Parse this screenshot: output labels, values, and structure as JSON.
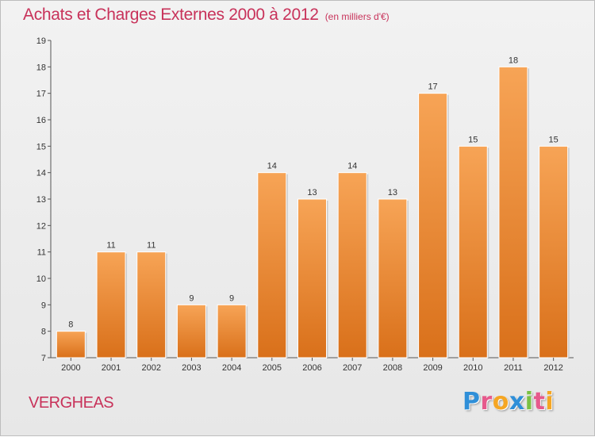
{
  "chart_data": {
    "type": "bar",
    "title": "Achats et Charges Externes 2000 à 2012",
    "subtitle": "(en milliers d'€)",
    "categories": [
      "2000",
      "2001",
      "2002",
      "2003",
      "2004",
      "2005",
      "2006",
      "2007",
      "2008",
      "2009",
      "2010",
      "2011",
      "2012"
    ],
    "values": [
      8,
      11,
      11,
      9,
      9,
      14,
      13,
      14,
      13,
      17,
      15,
      18,
      15
    ],
    "ylim": [
      7,
      19
    ],
    "yticks": [
      7,
      8,
      9,
      10,
      11,
      12,
      13,
      14,
      15,
      16,
      17,
      18,
      19
    ],
    "xlabel": "",
    "ylabel": "",
    "grid": false,
    "bar_color": "#f0923a",
    "label": "VERGHEAS"
  },
  "brand": {
    "letters": [
      {
        "char": "P",
        "color": "#2f8fd8"
      },
      {
        "char": "r",
        "color": "#e65a8c"
      },
      {
        "char": "o",
        "color": "#f5a623"
      },
      {
        "char": "x",
        "color": "#2f8fd8"
      },
      {
        "char": "i",
        "color": "#7ac143"
      },
      {
        "char": "t",
        "color": "#e65a8c"
      },
      {
        "char": "i",
        "color": "#f5a623"
      }
    ]
  },
  "colors": {
    "accent": "#c8325a",
    "axis": "#555555"
  }
}
